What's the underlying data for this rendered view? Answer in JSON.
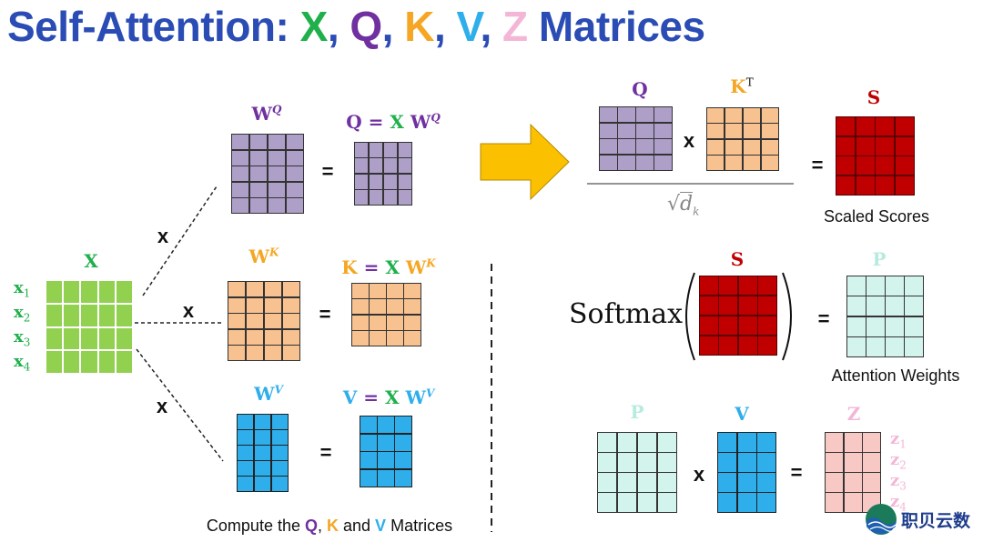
{
  "title": {
    "prefix": "Self-Attention: ",
    "parts": [
      {
        "t": "X",
        "c": "#1fb04b"
      },
      {
        "t": ", ",
        "c": "#2b4cb5"
      },
      {
        "t": "Q",
        "c": "#7030a0"
      },
      {
        "t": ", ",
        "c": "#2b4cb5"
      },
      {
        "t": "K",
        "c": "#f5a623"
      },
      {
        "t": ", ",
        "c": "#2b4cb5"
      },
      {
        "t": "V",
        "c": "#2eaeeb"
      },
      {
        "t": ", ",
        "c": "#2b4cb5"
      },
      {
        "t": "Z",
        "c": "#f4b6d6"
      },
      {
        "t": " Matrices",
        "c": "#2b4cb5"
      }
    ]
  },
  "colors": {
    "x": "#92d050",
    "q": "#ae9fc9",
    "k": "#f8c190",
    "v": "#2eaeeb",
    "s": "#c00000",
    "p": "#d3f4ed",
    "z": "#f8c8c4"
  },
  "left": {
    "x_label": "X",
    "x_rows": [
      "x",
      "x",
      "x",
      "x"
    ],
    "x_subs": [
      "1",
      "2",
      "3",
      "4"
    ],
    "times": "x",
    "equals": "=",
    "wq": {
      "base": "W",
      "sup": "Q"
    },
    "wk": {
      "base": "W",
      "sup": "K"
    },
    "wv": {
      "base": "W",
      "sup": "V"
    },
    "q_eq": {
      "lhs": "Q",
      "eq": " = ",
      "x": "X",
      "w": " W",
      "sup": "Q"
    },
    "k_eq": {
      "lhs": "K",
      "eq": " = ",
      "x": "X",
      "w": " W",
      "sup": "K"
    },
    "v_eq": {
      "lhs": "V",
      "eq": " = ",
      "x": "X",
      "w": " W",
      "sup": "V"
    },
    "caption": {
      "a": "Compute the ",
      "q": "Q",
      ", ": ", ",
      "k": "K",
      "and": " and ",
      "v": "V",
      "end": " Matrices"
    }
  },
  "right": {
    "q_label": "Q",
    "kt_label": "K",
    "kt_sup": "T",
    "times": "x",
    "equals": "=",
    "sqrt": "√",
    "dk": "d",
    "dk_sub": "k",
    "s_label": "S",
    "scaled_scores": "Scaled Scores",
    "softmax": "Softmax",
    "p_label": "P",
    "attention_weights": "Attention Weights",
    "v_label": "V",
    "z_label": "Z",
    "z_rows": [
      "z",
      "z",
      "z",
      "z"
    ],
    "z_subs": [
      "1",
      "2",
      "3",
      "4"
    ]
  },
  "logo": {
    "text": "职贝云数"
  },
  "matrices": {
    "x": {
      "rows": 4,
      "cols": 5
    },
    "wq": {
      "rows": 5,
      "cols": 4
    },
    "q": {
      "rows": 4,
      "cols": 4
    },
    "wk": {
      "rows": 5,
      "cols": 4
    },
    "k": {
      "rows": 4,
      "cols": 4
    },
    "wv": {
      "rows": 5,
      "cols": 3
    },
    "v": {
      "rows": 4,
      "cols": 3
    },
    "q2": {
      "rows": 4,
      "cols": 4
    },
    "kt": {
      "rows": 4,
      "cols": 4
    },
    "s1": {
      "rows": 4,
      "cols": 4
    },
    "s2": {
      "rows": 4,
      "cols": 4
    },
    "p1": {
      "rows": 4,
      "cols": 4
    },
    "p2": {
      "rows": 4,
      "cols": 4
    },
    "v2": {
      "rows": 4,
      "cols": 3
    },
    "z": {
      "rows": 4,
      "cols": 3
    }
  }
}
